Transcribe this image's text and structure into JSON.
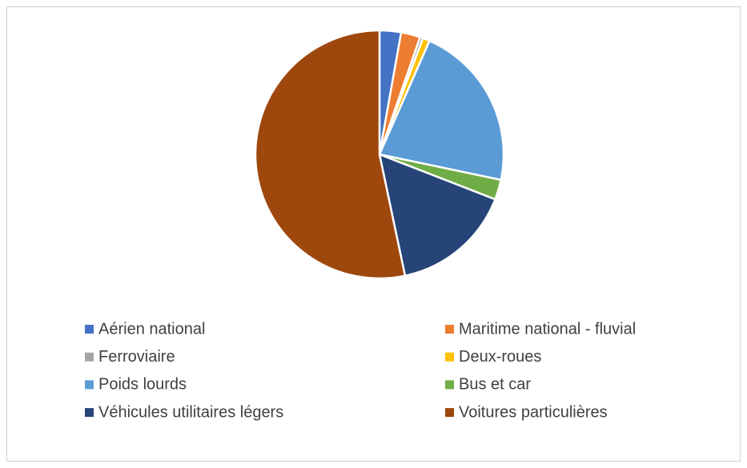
{
  "chart_data": {
    "type": "pie",
    "categories": [
      "Aérien national",
      "Maritime national - fluvial",
      "Ferroviaire",
      "Deux-roues",
      "Poids lourds",
      "Bus et car",
      "Véhicules utilitaires légers",
      "Voitures particulières"
    ],
    "values": [
      2.8,
      2.5,
      0.4,
      0.9,
      21.7,
      2.6,
      15.8,
      53.3
    ],
    "colors": [
      "#4472c4",
      "#ed7d31",
      "#a5a5a5",
      "#ffc000",
      "#5b9bd5",
      "#70ad47",
      "#264478",
      "#9e480e"
    ],
    "legend": "bottom"
  }
}
